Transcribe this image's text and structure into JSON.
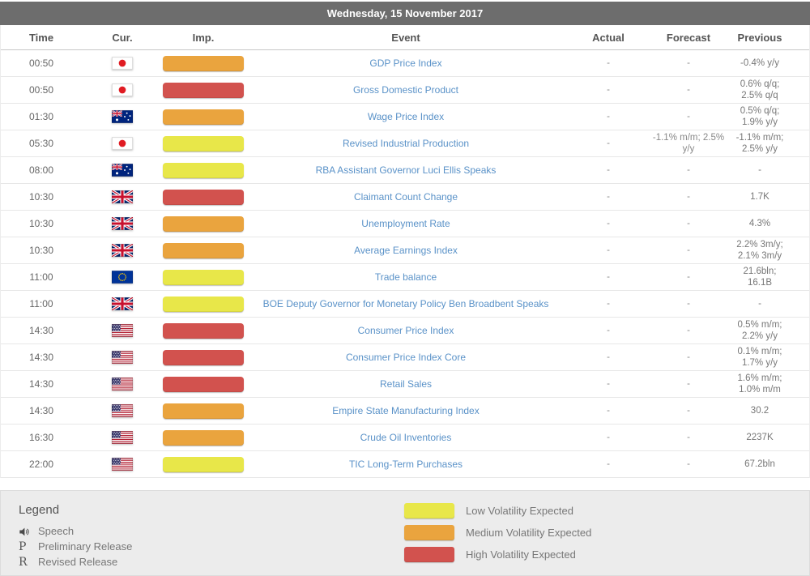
{
  "date_header": "Wednesday, 15 November 2017",
  "columns": [
    "Time",
    "Cur.",
    "Imp.",
    "Event",
    "Actual",
    "Forecast",
    "Previous"
  ],
  "colors": {
    "low": "#e8e749",
    "medium": "#eaa43e",
    "high": "#d2524e",
    "header_bg": "#6d6d6d",
    "event_link": "#5a92c8"
  },
  "rows": [
    {
      "time": "00:50",
      "flag": "japan",
      "importance": "medium",
      "event": "GDP Price Index",
      "actual": "-",
      "forecast": "-",
      "previous": "-0.4% y/y"
    },
    {
      "time": "00:50",
      "flag": "japan",
      "importance": "high",
      "event": "Gross Domestic Product",
      "actual": "-",
      "forecast": "-",
      "previous": "0.6% q/q; 2.5% q/q"
    },
    {
      "time": "01:30",
      "flag": "australia",
      "importance": "medium",
      "event": "Wage Price Index",
      "actual": "-",
      "forecast": "-",
      "previous": "0.5% q/q; 1.9% y/y"
    },
    {
      "time": "05:30",
      "flag": "japan",
      "importance": "low",
      "event": "Revised Industrial Production",
      "actual": "-",
      "forecast": "-1.1% m/m; 2.5% y/y",
      "previous": "-1.1% m/m; 2.5% y/y"
    },
    {
      "time": "08:00",
      "flag": "australia",
      "importance": "low",
      "event": "RBA Assistant Governor Luci Ellis Speaks",
      "actual": "-",
      "forecast": "-",
      "previous": "-"
    },
    {
      "time": "10:30",
      "flag": "uk",
      "importance": "high",
      "event": "Claimant Count Change",
      "actual": "-",
      "forecast": "-",
      "previous": "1.7K"
    },
    {
      "time": "10:30",
      "flag": "uk",
      "importance": "medium",
      "event": "Unemployment Rate",
      "actual": "-",
      "forecast": "-",
      "previous": "4.3%"
    },
    {
      "time": "10:30",
      "flag": "uk",
      "importance": "medium",
      "event": "Average Earnings Index",
      "actual": "-",
      "forecast": "-",
      "previous": "2.2% 3m/y; 2.1% 3m/y"
    },
    {
      "time": "11:00",
      "flag": "eu",
      "importance": "low",
      "event": "Trade balance",
      "actual": "-",
      "forecast": "-",
      "previous": "21.6bln; 16.1B"
    },
    {
      "time": "11:00",
      "flag": "uk",
      "importance": "low",
      "event": "BOE Deputy Governor for Monetary Policy Ben Broadbent Speaks",
      "actual": "-",
      "forecast": "-",
      "previous": "-"
    },
    {
      "time": "14:30",
      "flag": "us",
      "importance": "high",
      "event": "Consumer Price Index",
      "actual": "-",
      "forecast": "-",
      "previous": "0.5% m/m; 2.2% y/y"
    },
    {
      "time": "14:30",
      "flag": "us",
      "importance": "high",
      "event": "Consumer Price Index Core",
      "actual": "-",
      "forecast": "-",
      "previous": "0.1% m/m; 1.7% y/y"
    },
    {
      "time": "14:30",
      "flag": "us",
      "importance": "high",
      "event": "Retail Sales",
      "actual": "-",
      "forecast": "-",
      "previous": "1.6% m/m; 1.0% m/m"
    },
    {
      "time": "14:30",
      "flag": "us",
      "importance": "medium",
      "event": "Empire State Manufacturing Index",
      "actual": "-",
      "forecast": "-",
      "previous": "30.2"
    },
    {
      "time": "16:30",
      "flag": "us",
      "importance": "medium",
      "event": "Crude Oil Inventories",
      "actual": "-",
      "forecast": "-",
      "previous": "2237K"
    },
    {
      "time": "22:00",
      "flag": "us",
      "importance": "low",
      "event": "TIC Long-Term Purchases",
      "actual": "-",
      "forecast": "-",
      "previous": "67.2bln"
    }
  ],
  "legend": {
    "title": "Legend",
    "items": [
      {
        "glyph": "speaker-icon",
        "label": "Speech"
      },
      {
        "glyph": "P",
        "label": "Preliminary Release"
      },
      {
        "glyph": "R",
        "label": "Revised Release"
      }
    ],
    "volatility": [
      {
        "level": "low",
        "label": "Low Volatility Expected"
      },
      {
        "level": "medium",
        "label": "Medium Volatility Expected"
      },
      {
        "level": "high",
        "label": "High Volatility Expected"
      }
    ]
  }
}
